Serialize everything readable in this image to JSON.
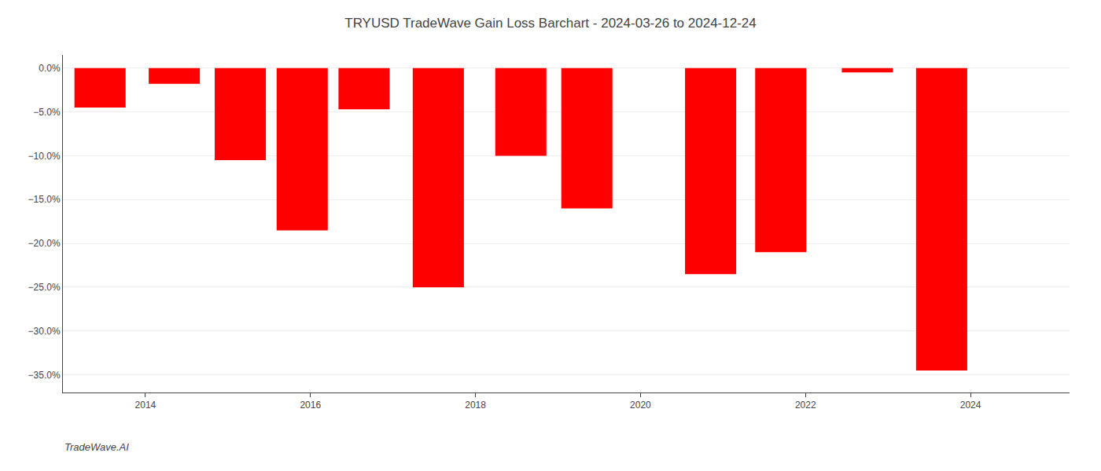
{
  "chart_data": {
    "type": "bar",
    "title": "TRYUSD TradeWave Gain Loss Barchart - 2024-03-26 to 2024-12-24",
    "annotations": [
      "TradeWave.AI"
    ],
    "x": [
      2013.45,
      2014.35,
      2015.15,
      2015.9,
      2016.65,
      2017.55,
      2018.55,
      2019.35,
      2020.85,
      2021.7,
      2022.75,
      2023.65
    ],
    "values": [
      -4.5,
      -1.8,
      -10.5,
      -18.5,
      -4.7,
      -25.0,
      -10.0,
      -16.0,
      -23.5,
      -21.0,
      -0.5,
      -34.5
    ],
    "color": "#ff0000",
    "xlim": [
      2013.0,
      2025.2
    ],
    "ylim": [
      -37.0,
      1.5
    ],
    "xticks": [
      2014,
      2016,
      2018,
      2020,
      2022,
      2024
    ],
    "yticks": [
      {
        "value": 0.0,
        "label": "0.0%"
      },
      {
        "value": -5.0,
        "label": "−5.0%"
      },
      {
        "value": -10.0,
        "label": "−10.0%"
      },
      {
        "value": -15.0,
        "label": "−15.0%"
      },
      {
        "value": -20.0,
        "label": "−20.0%"
      },
      {
        "value": -25.0,
        "label": "−25.0%"
      },
      {
        "value": -30.0,
        "label": "−30.0%"
      },
      {
        "value": -35.0,
        "label": "−35.0%"
      }
    ],
    "grid": true
  }
}
